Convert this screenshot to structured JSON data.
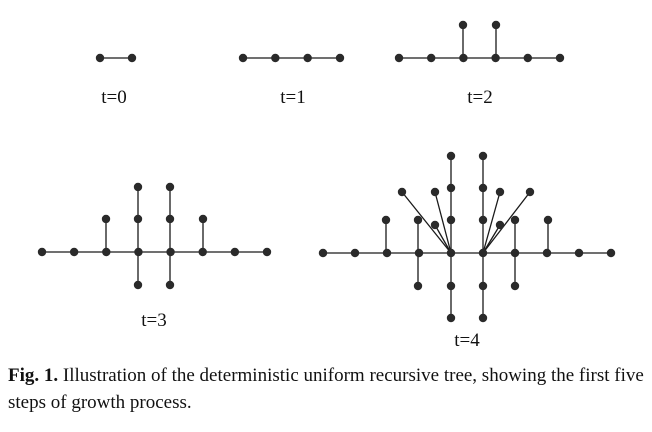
{
  "figure": {
    "steps": [
      {
        "label": "t=0"
      },
      {
        "label": "t=1"
      },
      {
        "label": "t=2"
      },
      {
        "label": "t=3"
      },
      {
        "label": "t=4"
      }
    ]
  },
  "caption": {
    "ref": "Fig. 1.",
    "text": " Illustration of the deterministic uniform recursive tree, showing the first five steps of growth process."
  }
}
